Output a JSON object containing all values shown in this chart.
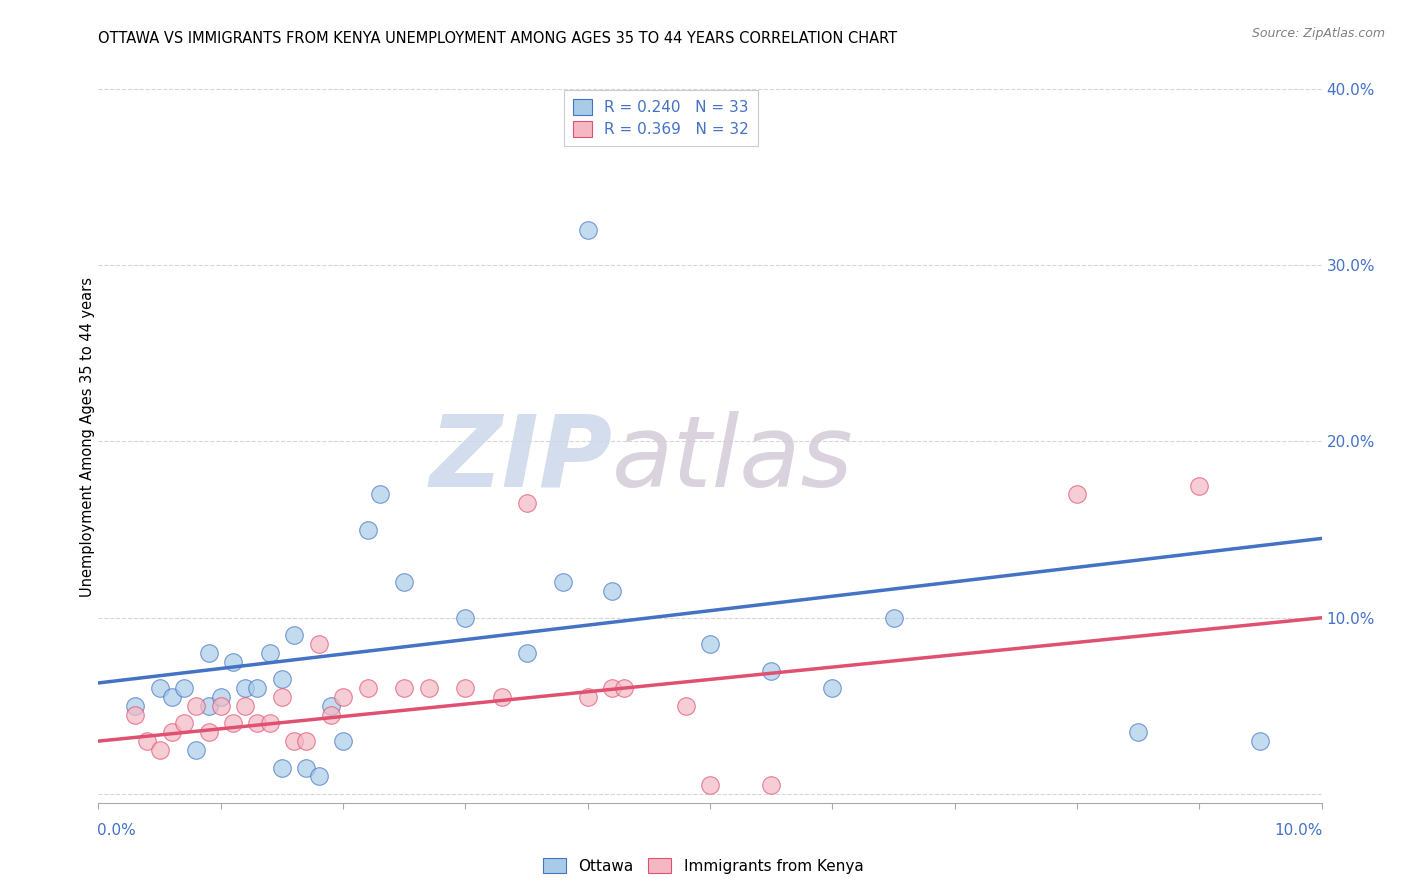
{
  "title": "OTTAWA VS IMMIGRANTS FROM KENYA UNEMPLOYMENT AMONG AGES 35 TO 44 YEARS CORRELATION CHART",
  "source": "Source: ZipAtlas.com",
  "ylabel": "Unemployment Among Ages 35 to 44 years",
  "xlim": [
    0.0,
    0.1
  ],
  "ylim": [
    -0.005,
    0.41
  ],
  "yticks": [
    0.0,
    0.1,
    0.2,
    0.3,
    0.4
  ],
  "ytick_labels": [
    "",
    "10.0%",
    "20.0%",
    "30.0%",
    "40.0%"
  ],
  "ottawa_color": "#a8cce8",
  "kenya_color": "#f4b8c4",
  "blue_line_color": "#4472c4",
  "pink_line_color": "#e05070",
  "grid_color": "#cccccc",
  "watermark_zip_color": "#d0dff0",
  "watermark_atlas_color": "#d0c8d8",
  "legend_r1": "R = 0.240   N = 33",
  "legend_r2": "R = 0.369   N = 32",
  "ottawa_x": [
    0.003,
    0.005,
    0.006,
    0.007,
    0.008,
    0.009,
    0.009,
    0.01,
    0.011,
    0.012,
    0.013,
    0.014,
    0.015,
    0.015,
    0.016,
    0.017,
    0.018,
    0.019,
    0.02,
    0.022,
    0.023,
    0.025,
    0.03,
    0.035,
    0.038,
    0.04,
    0.042,
    0.05,
    0.055,
    0.06,
    0.065,
    0.085,
    0.095
  ],
  "ottawa_y": [
    0.05,
    0.06,
    0.055,
    0.06,
    0.025,
    0.05,
    0.08,
    0.055,
    0.075,
    0.06,
    0.06,
    0.08,
    0.065,
    0.015,
    0.09,
    0.015,
    0.01,
    0.05,
    0.03,
    0.15,
    0.17,
    0.12,
    0.1,
    0.08,
    0.12,
    0.32,
    0.115,
    0.085,
    0.07,
    0.06,
    0.1,
    0.035,
    0.03
  ],
  "kenya_x": [
    0.003,
    0.004,
    0.005,
    0.006,
    0.007,
    0.008,
    0.009,
    0.01,
    0.011,
    0.012,
    0.013,
    0.014,
    0.015,
    0.016,
    0.017,
    0.018,
    0.019,
    0.02,
    0.022,
    0.025,
    0.027,
    0.03,
    0.033,
    0.035,
    0.04,
    0.042,
    0.043,
    0.048,
    0.05,
    0.055,
    0.08,
    0.09
  ],
  "kenya_y": [
    0.045,
    0.03,
    0.025,
    0.035,
    0.04,
    0.05,
    0.035,
    0.05,
    0.04,
    0.05,
    0.04,
    0.04,
    0.055,
    0.03,
    0.03,
    0.085,
    0.045,
    0.055,
    0.06,
    0.06,
    0.06,
    0.06,
    0.055,
    0.165,
    0.055,
    0.06,
    0.06,
    0.05,
    0.005,
    0.005,
    0.17,
    0.175
  ],
  "blue_line_x0": 0.0,
  "blue_line_y0": 0.063,
  "blue_line_x1": 0.1,
  "blue_line_y1": 0.145,
  "pink_line_x0": 0.0,
  "pink_line_y0": 0.03,
  "pink_line_x1": 0.1,
  "pink_line_y1": 0.1
}
